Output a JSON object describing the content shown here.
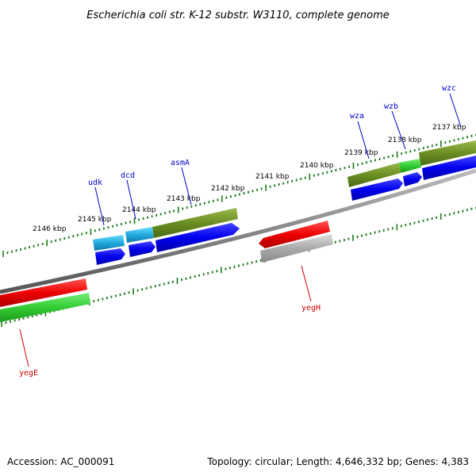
{
  "title": "Escherichia coli str. K-12 substr. W3110, complete genome",
  "footer": {
    "accession": "Accession: AC_000091",
    "summary": "Topology: circular; Length: 4,646,332 bp; Genes: 4,383"
  },
  "tick_labels": [
    "2137 kbp",
    "2138 kbp",
    "2139 kbp",
    "2140 kbp",
    "2141 kbp",
    "2142 kbp",
    "2143 kbp",
    "2144 kbp",
    "2145 kbp",
    "2146 kbp"
  ],
  "genes": {
    "wzc": "wzc",
    "wzb": "wzb",
    "wza": "wza",
    "asmA": "asmA",
    "dcd": "dcd",
    "udk": "udk",
    "yegH": "yegH",
    "yegE": "yegE"
  },
  "colors": {
    "forward_gene": "#6b8e23",
    "forward_gene_small": "#33cc33",
    "forward_gene_cyan": "#22aadd",
    "cds_blue": "#0000ee",
    "reverse_gene": "#ee0000",
    "reverse_gene_green": "#22bb22",
    "reverse_cds_gray": "#aaaaaa",
    "backbone": "#888888",
    "tick_green": "#1a7a1a",
    "label_blue": "#0000cc",
    "label_red": "#cc0000"
  }
}
